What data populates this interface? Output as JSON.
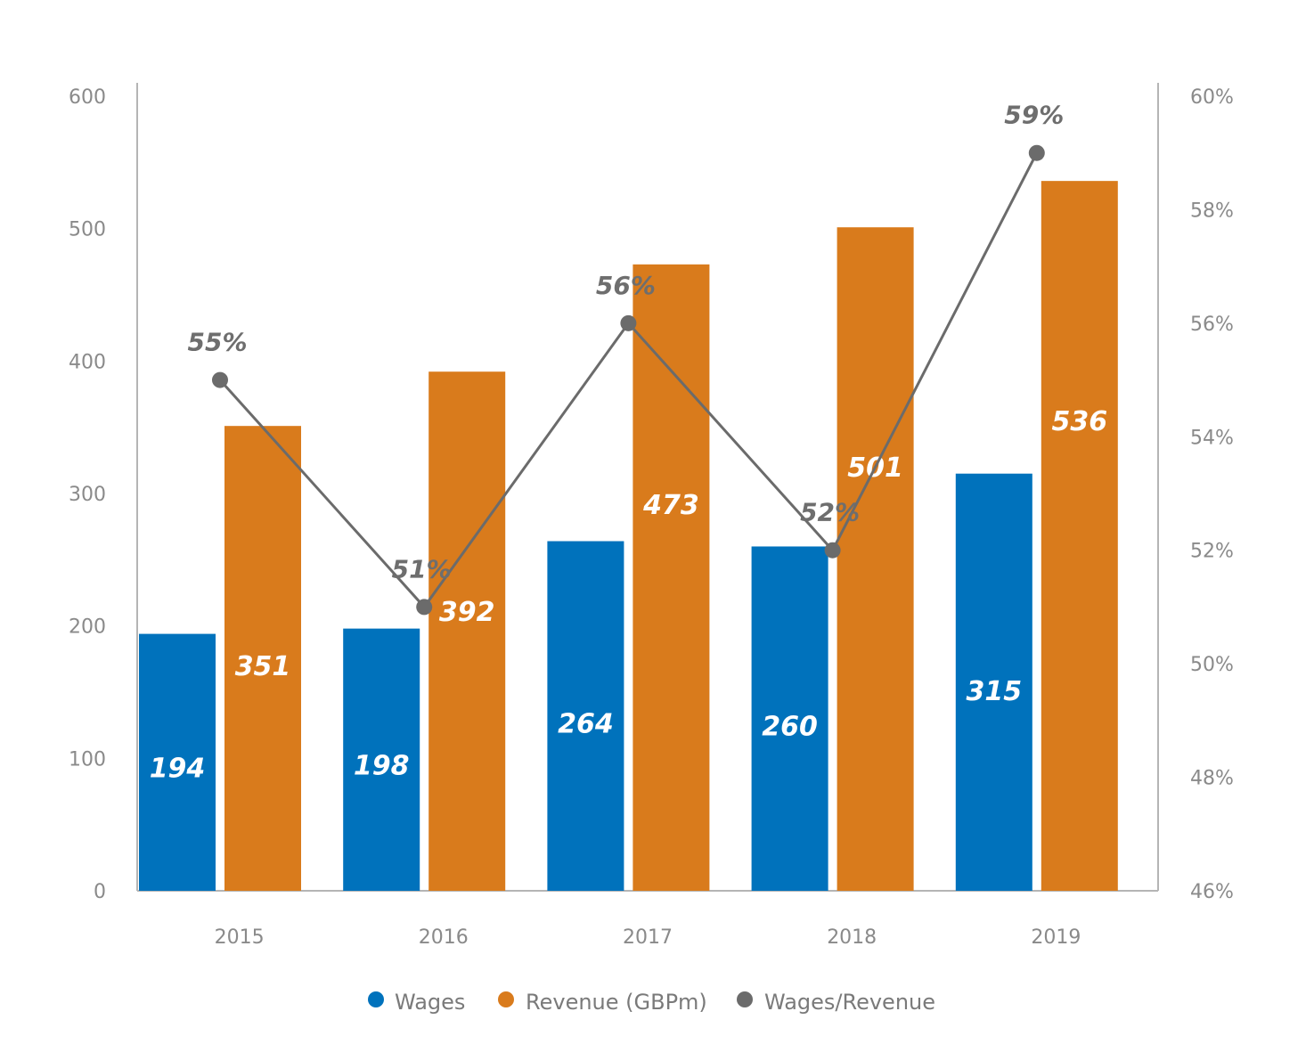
{
  "chart_data": {
    "type": "bar",
    "categories": [
      "2015",
      "2016",
      "2017",
      "2018",
      "2019"
    ],
    "series": [
      {
        "name": "Wages",
        "kind": "bar",
        "axis": "left",
        "color": "#0072bc",
        "values": [
          194,
          198,
          264,
          260,
          315
        ],
        "labels": [
          "194",
          "198",
          "264",
          "260",
          "315"
        ]
      },
      {
        "name": "Revenue (GBPm)",
        "kind": "bar",
        "axis": "left",
        "color": "#d97b1c",
        "values": [
          351,
          392,
          473,
          501,
          536
        ],
        "labels": [
          "351",
          "392",
          "473",
          "501",
          "536"
        ]
      },
      {
        "name": "Wages/Revenue",
        "kind": "line",
        "axis": "right",
        "color": "#6b6b6b",
        "values": [
          55,
          51,
          56,
          52,
          59
        ],
        "labels": [
          "55%",
          "51%",
          "56%",
          "52%",
          "59%"
        ]
      }
    ],
    "y_left": {
      "min": 0,
      "max": 600,
      "ticks": [
        "0",
        "100",
        "200",
        "300",
        "400",
        "500",
        "600"
      ]
    },
    "y_right": {
      "min": 46,
      "max": 60,
      "ticks": [
        "46%",
        "48%",
        "50%",
        "52%",
        "54%",
        "56%",
        "58%",
        "60%"
      ]
    },
    "grid": false,
    "legend": {
      "position": "bottom",
      "items": [
        "Wages",
        "Revenue (GBPm)",
        "Wages/Revenue"
      ]
    },
    "axis_color": "#b5b5b5"
  }
}
